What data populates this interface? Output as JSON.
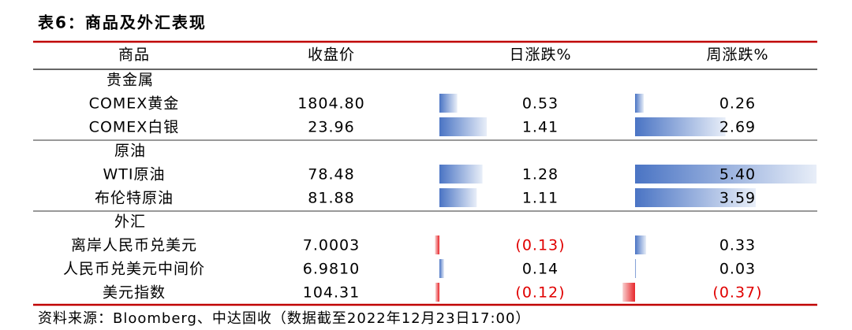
{
  "title": "表6：商品及外汇表现",
  "table": {
    "headers": [
      "商品",
      "收盘价",
      "日涨跌%",
      "周涨跌%"
    ],
    "groups": [
      {
        "name": "贵金属",
        "rows": [
          {
            "name": "COMEX黄金",
            "close": "1804.80",
            "daily": 0.53,
            "weekly": 0.26
          },
          {
            "name": "COMEX白银",
            "close": "23.96",
            "daily": 1.41,
            "weekly": 2.69
          }
        ]
      },
      {
        "name": "原油",
        "rows": [
          {
            "name": "WTI原油",
            "close": "78.48",
            "daily": 1.28,
            "weekly": {
              "value": 5.4,
              "label": "5.40"
            }
          },
          {
            "name": "布伦特原油",
            "close": "81.88",
            "daily": 1.11,
            "weekly": 3.59
          }
        ]
      },
      {
        "name": "外汇",
        "rows": [
          {
            "name": "离岸人民币兑美元",
            "close": "7.0003",
            "daily": {
              "value": -0.13,
              "label": "(0.13)"
            },
            "weekly": 0.33
          },
          {
            "name": "人民币兑美元中间价",
            "close": "6.9810",
            "daily": 0.14,
            "weekly": 0.03
          },
          {
            "name": "美元指数",
            "close": "104.31",
            "daily": {
              "value": -0.12,
              "label": "(0.12)"
            },
            "weekly": {
              "value": -0.37,
              "label": "(0.37)"
            }
          }
        ]
      }
    ]
  },
  "source": "资料来源：Bloomberg、中达固收（数据截至2022年12月23日17:00）"
}
